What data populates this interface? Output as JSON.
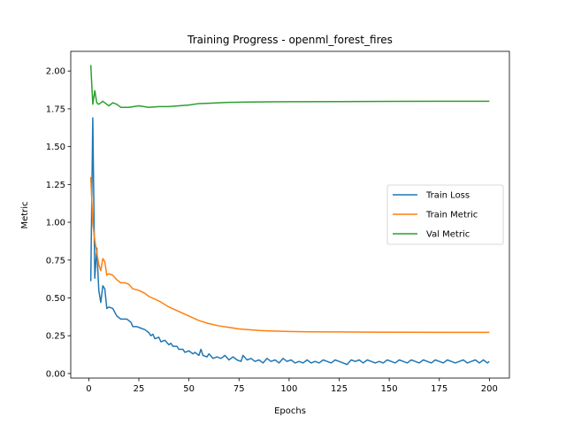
{
  "chart_data": {
    "type": "line",
    "title": "Training Progress - openml_forest_fires",
    "xlabel": "Epochs",
    "ylabel": "Metric",
    "xlim": [
      -9,
      210
    ],
    "ylim": [
      -0.03,
      2.13
    ],
    "xticks": [
      0,
      25,
      50,
      75,
      100,
      125,
      150,
      175,
      200
    ],
    "yticks": [
      0.0,
      0.25,
      0.5,
      0.75,
      1.0,
      1.25,
      1.5,
      1.75,
      2.0
    ],
    "ytick_labels": [
      "0.00",
      "0.25",
      "0.50",
      "0.75",
      "1.00",
      "1.25",
      "1.50",
      "1.75",
      "2.00"
    ],
    "grid": false,
    "legend_position": "center-right",
    "series": [
      {
        "name": "Train Loss",
        "color": "#1f77b4",
        "points": [
          [
            1,
            0.61
          ],
          [
            2,
            1.69
          ],
          [
            3,
            0.63
          ],
          [
            4,
            0.83
          ],
          [
            5,
            0.55
          ],
          [
            6,
            0.47
          ],
          [
            7,
            0.58
          ],
          [
            8,
            0.56
          ],
          [
            9,
            0.43
          ],
          [
            10,
            0.44
          ],
          [
            12,
            0.43
          ],
          [
            14,
            0.38
          ],
          [
            16,
            0.36
          ],
          [
            19,
            0.36
          ],
          [
            21,
            0.34
          ],
          [
            22,
            0.31
          ],
          [
            24,
            0.31
          ],
          [
            26,
            0.3
          ],
          [
            28,
            0.29
          ],
          [
            30,
            0.27
          ],
          [
            31,
            0.25
          ],
          [
            32,
            0.26
          ],
          [
            33,
            0.23
          ],
          [
            35,
            0.24
          ],
          [
            36,
            0.21
          ],
          [
            38,
            0.22
          ],
          [
            40,
            0.19
          ],
          [
            41,
            0.2
          ],
          [
            42,
            0.18
          ],
          [
            44,
            0.18
          ],
          [
            45,
            0.16
          ],
          [
            47,
            0.16
          ],
          [
            48,
            0.14
          ],
          [
            50,
            0.15
          ],
          [
            52,
            0.13
          ],
          [
            53,
            0.14
          ],
          [
            55,
            0.12
          ],
          [
            56,
            0.16
          ],
          [
            57,
            0.12
          ],
          [
            59,
            0.11
          ],
          [
            60,
            0.13
          ],
          [
            62,
            0.1
          ],
          [
            64,
            0.11
          ],
          [
            66,
            0.1
          ],
          [
            68,
            0.12
          ],
          [
            70,
            0.09
          ],
          [
            72,
            0.11
          ],
          [
            74,
            0.09
          ],
          [
            76,
            0.08
          ],
          [
            77,
            0.12
          ],
          [
            79,
            0.09
          ],
          [
            81,
            0.1
          ],
          [
            83,
            0.08
          ],
          [
            85,
            0.09
          ],
          [
            87,
            0.07
          ],
          [
            89,
            0.1
          ],
          [
            91,
            0.08
          ],
          [
            93,
            0.09
          ],
          [
            95,
            0.07
          ],
          [
            97,
            0.1
          ],
          [
            99,
            0.08
          ],
          [
            101,
            0.09
          ],
          [
            103,
            0.07
          ],
          [
            105,
            0.08
          ],
          [
            107,
            0.07
          ],
          [
            109,
            0.09
          ],
          [
            111,
            0.07
          ],
          [
            113,
            0.08
          ],
          [
            115,
            0.07
          ],
          [
            117,
            0.09
          ],
          [
            119,
            0.08
          ],
          [
            121,
            0.07
          ],
          [
            123,
            0.09
          ],
          [
            125,
            0.08
          ],
          [
            127,
            0.07
          ],
          [
            129,
            0.06
          ],
          [
            131,
            0.09
          ],
          [
            133,
            0.08
          ],
          [
            135,
            0.09
          ],
          [
            137,
            0.07
          ],
          [
            139,
            0.09
          ],
          [
            141,
            0.08
          ],
          [
            143,
            0.07
          ],
          [
            145,
            0.08
          ],
          [
            147,
            0.07
          ],
          [
            149,
            0.09
          ],
          [
            151,
            0.08
          ],
          [
            153,
            0.07
          ],
          [
            155,
            0.09
          ],
          [
            157,
            0.08
          ],
          [
            159,
            0.07
          ],
          [
            161,
            0.09
          ],
          [
            163,
            0.08
          ],
          [
            165,
            0.07
          ],
          [
            167,
            0.09
          ],
          [
            169,
            0.08
          ],
          [
            171,
            0.07
          ],
          [
            173,
            0.09
          ],
          [
            175,
            0.08
          ],
          [
            177,
            0.07
          ],
          [
            179,
            0.09
          ],
          [
            181,
            0.08
          ],
          [
            183,
            0.07
          ],
          [
            185,
            0.08
          ],
          [
            187,
            0.09
          ],
          [
            189,
            0.07
          ],
          [
            191,
            0.08
          ],
          [
            193,
            0.09
          ],
          [
            195,
            0.07
          ],
          [
            197,
            0.09
          ],
          [
            199,
            0.07
          ],
          [
            200,
            0.08
          ]
        ]
      },
      {
        "name": "Train Metric",
        "color": "#ff7f0e",
        "points": [
          [
            1,
            1.3
          ],
          [
            2,
            1.0
          ],
          [
            3,
            0.88
          ],
          [
            4,
            0.8
          ],
          [
            5,
            0.72
          ],
          [
            6,
            0.68
          ],
          [
            7,
            0.76
          ],
          [
            8,
            0.74
          ],
          [
            9,
            0.65
          ],
          [
            10,
            0.66
          ],
          [
            12,
            0.65
          ],
          [
            14,
            0.62
          ],
          [
            16,
            0.6
          ],
          [
            18,
            0.6
          ],
          [
            20,
            0.59
          ],
          [
            22,
            0.56
          ],
          [
            25,
            0.55
          ],
          [
            28,
            0.53
          ],
          [
            30,
            0.51
          ],
          [
            35,
            0.48
          ],
          [
            40,
            0.44
          ],
          [
            45,
            0.41
          ],
          [
            50,
            0.38
          ],
          [
            55,
            0.35
          ],
          [
            60,
            0.33
          ],
          [
            65,
            0.315
          ],
          [
            70,
            0.305
          ],
          [
            75,
            0.295
          ],
          [
            80,
            0.29
          ],
          [
            85,
            0.285
          ],
          [
            90,
            0.282
          ],
          [
            100,
            0.278
          ],
          [
            110,
            0.276
          ],
          [
            120,
            0.275
          ],
          [
            140,
            0.274
          ],
          [
            160,
            0.273
          ],
          [
            180,
            0.272
          ],
          [
            200,
            0.272
          ]
        ]
      },
      {
        "name": "Val Metric",
        "color": "#2ca02c",
        "points": [
          [
            1,
            2.04
          ],
          [
            2,
            1.78
          ],
          [
            3,
            1.87
          ],
          [
            4,
            1.79
          ],
          [
            5,
            1.78
          ],
          [
            6,
            1.79
          ],
          [
            7,
            1.8
          ],
          [
            8,
            1.79
          ],
          [
            10,
            1.77
          ],
          [
            12,
            1.79
          ],
          [
            14,
            1.78
          ],
          [
            16,
            1.76
          ],
          [
            20,
            1.76
          ],
          [
            25,
            1.77
          ],
          [
            30,
            1.76
          ],
          [
            35,
            1.765
          ],
          [
            40,
            1.765
          ],
          [
            45,
            1.77
          ],
          [
            50,
            1.775
          ],
          [
            55,
            1.785
          ],
          [
            60,
            1.787
          ],
          [
            70,
            1.793
          ],
          [
            80,
            1.795
          ],
          [
            90,
            1.796
          ],
          [
            100,
            1.797
          ],
          [
            125,
            1.798
          ],
          [
            150,
            1.799
          ],
          [
            175,
            1.8
          ],
          [
            200,
            1.8
          ]
        ]
      }
    ]
  }
}
